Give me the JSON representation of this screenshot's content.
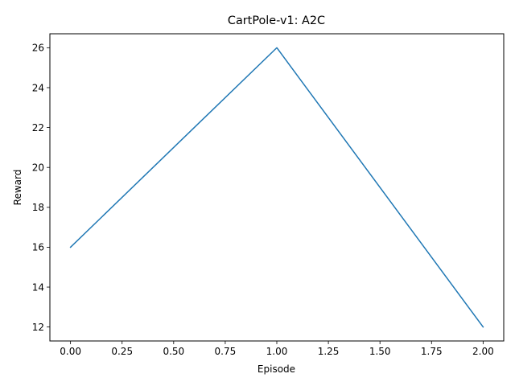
{
  "chart_data": {
    "type": "line",
    "title": "CartPole-v1: A2C",
    "xlabel": "Episode",
    "ylabel": "Reward",
    "x": [
      0,
      1,
      2
    ],
    "series": [
      {
        "values": [
          16,
          26,
          12
        ],
        "color": "#1f77b4"
      }
    ],
    "xlim": [
      -0.1,
      2.1
    ],
    "ylim": [
      11.3,
      26.7
    ],
    "xticks": [
      0.0,
      0.25,
      0.5,
      0.75,
      1.0,
      1.25,
      1.5,
      1.75,
      2.0
    ],
    "xtick_labels": [
      "0.00",
      "0.25",
      "0.50",
      "0.75",
      "1.00",
      "1.25",
      "1.50",
      "1.75",
      "2.00"
    ],
    "yticks": [
      12,
      14,
      16,
      18,
      20,
      22,
      24,
      26
    ],
    "ytick_labels": [
      "12",
      "14",
      "16",
      "18",
      "20",
      "22",
      "24",
      "26"
    ],
    "grid": false,
    "legend": false
  }
}
